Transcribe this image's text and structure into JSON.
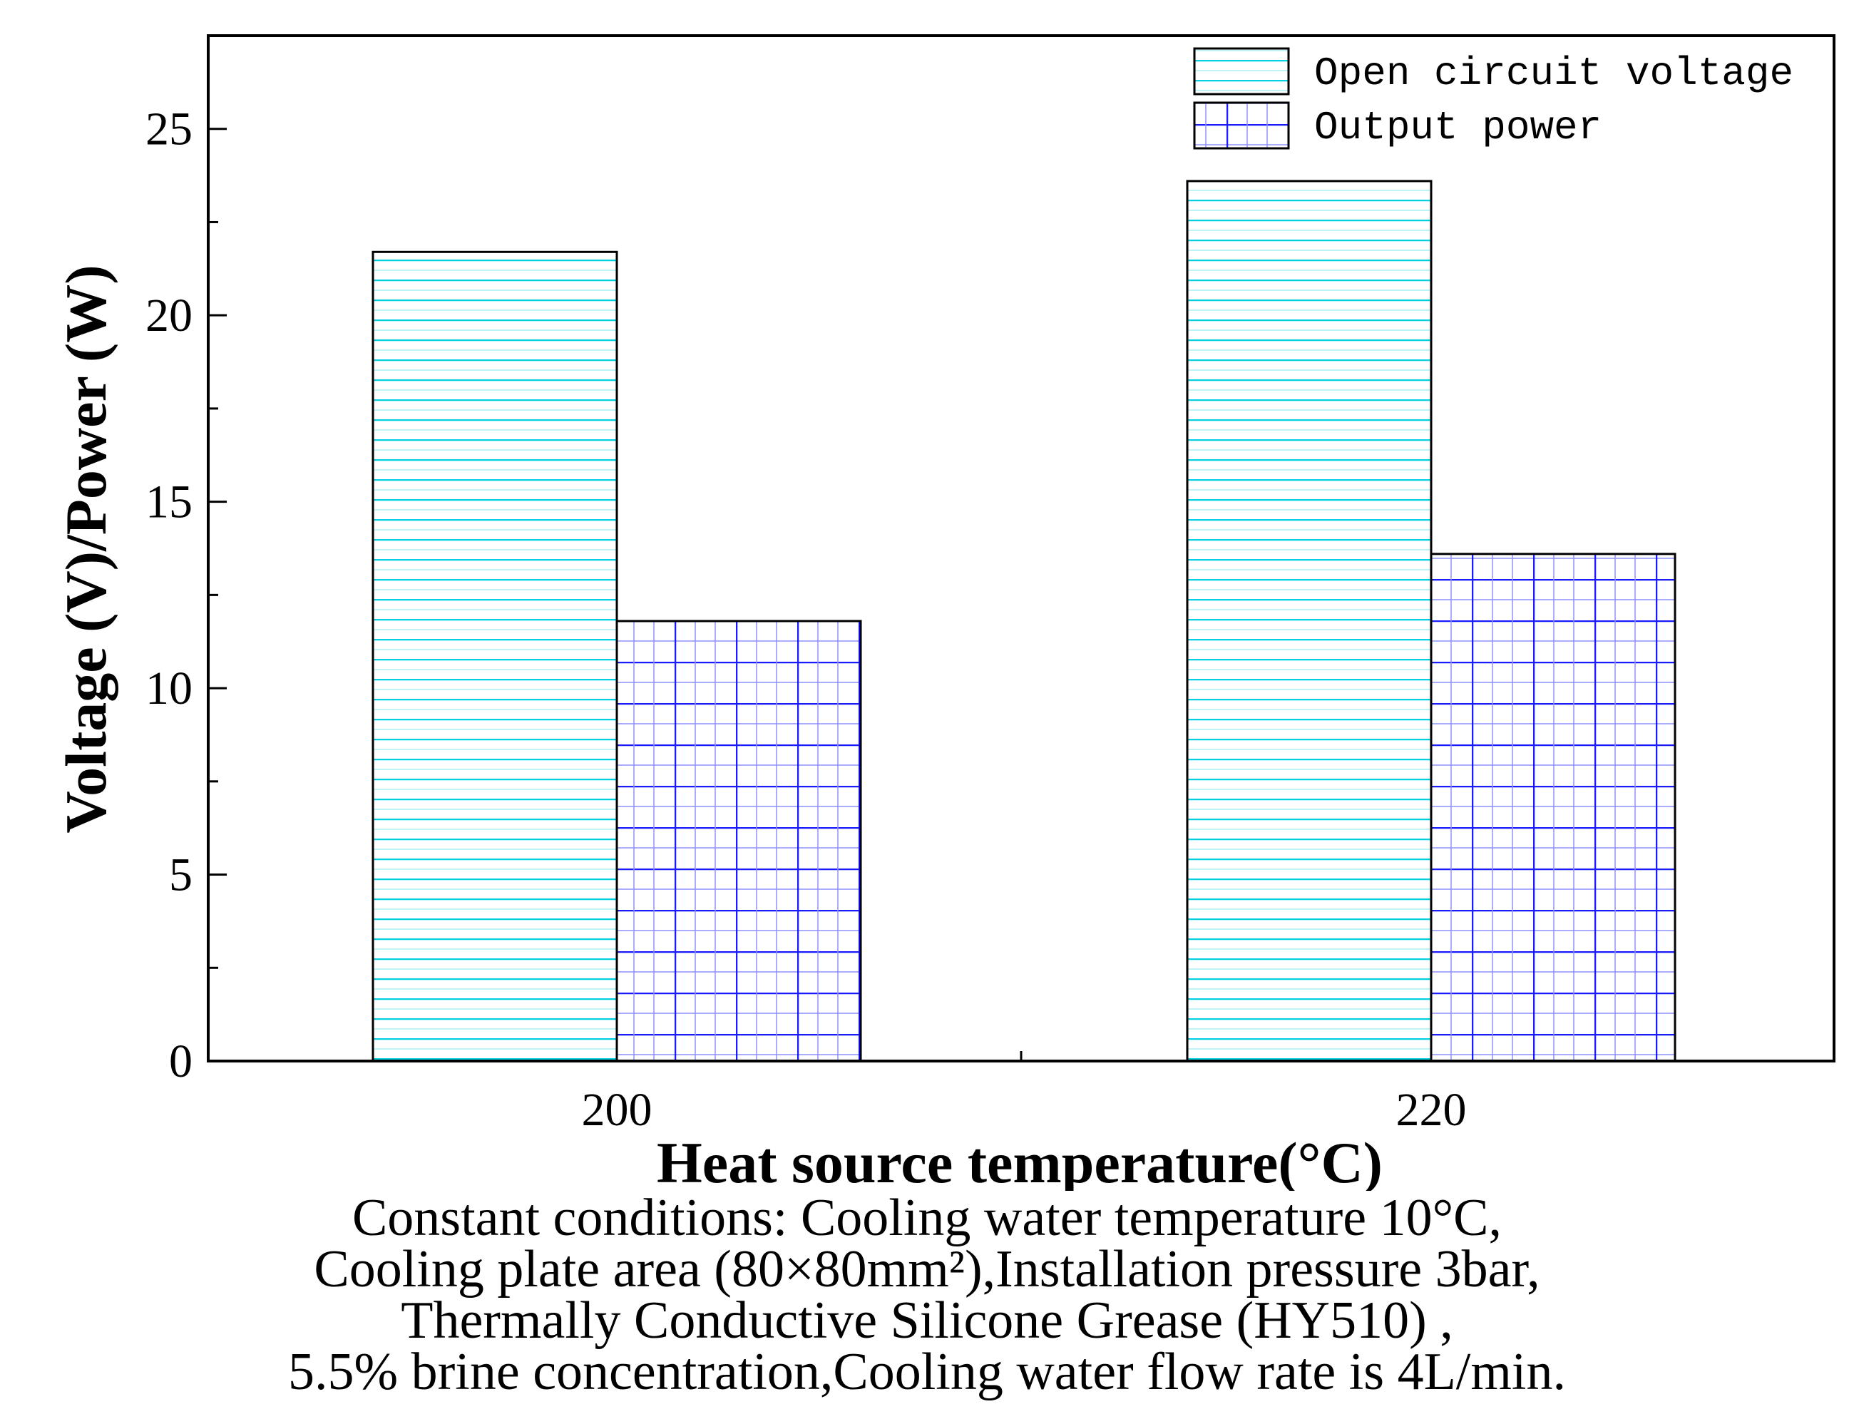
{
  "chart_data": {
    "type": "bar",
    "title": "",
    "xlabel": "Heat source temperature(°C)",
    "ylabel": "Voltage (V)/Power (W)",
    "categories": [
      "200",
      "220"
    ],
    "series": [
      {
        "name": "Open circuit voltage",
        "values": [
          21.7,
          23.6
        ],
        "color": "#00d0e0",
        "pattern": "horizontal-lines"
      },
      {
        "name": "Output power",
        "values": [
          11.8,
          13.6
        ],
        "color": "#1a1aff",
        "pattern": "grid"
      }
    ],
    "ylim": [
      0,
      27.5
    ],
    "yticks": [
      0,
      5,
      10,
      15,
      20,
      25
    ],
    "grid": false,
    "legend": "top-right"
  },
  "caption": {
    "lines": [
      "Constant conditions: Cooling water temperature 10°C,",
      "Cooling plate area (80×80mm²),Installation pressure 3bar,",
      "Thermally Conductive Silicone Grease (HY510) ,",
      "5.5% brine concentration,Cooling water flow rate is 4L/min."
    ]
  }
}
